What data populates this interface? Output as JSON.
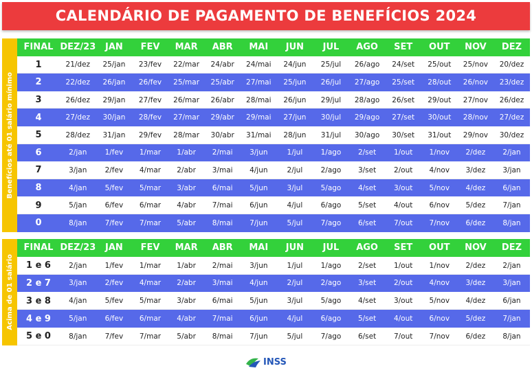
{
  "title": "CALENDÁRIO DE PAGAMENTO DE BENEFÍCIOS 2024",
  "tables": [
    {
      "side_label": "Benefícios até 01 salário mínimo",
      "header": [
        "FINAL",
        "DEZ/23",
        "JAN",
        "FEV",
        "MAR",
        "ABR",
        "MAI",
        "JUN",
        "JUL",
        "AGO",
        "SET",
        "OUT",
        "NOV",
        "DEZ"
      ],
      "rows": [
        [
          "1",
          "21/dez",
          "25/jan",
          "23/fev",
          "22/mar",
          "24/abr",
          "24/mai",
          "24/jun",
          "25/jul",
          "26/ago",
          "24/set",
          "25/out",
          "25/nov",
          "20/dez"
        ],
        [
          "2",
          "22/dez",
          "26/jan",
          "26/fev",
          "25/mar",
          "25/abr",
          "27/mai",
          "25/jun",
          "26/jul",
          "27/ago",
          "25/set",
          "28/out",
          "26/nov",
          "23/dez"
        ],
        [
          "3",
          "26/dez",
          "29/jan",
          "27/fev",
          "26/mar",
          "26/abr",
          "28/mai",
          "26/jun",
          "29/jul",
          "28/ago",
          "26/set",
          "29/out",
          "27/nov",
          "26/dez"
        ],
        [
          "4",
          "27/dez",
          "30/jan",
          "28/fev",
          "27/mar",
          "29/abr",
          "29/mai",
          "27/jun",
          "30/jul",
          "29/ago",
          "27/set",
          "30/out",
          "28/nov",
          "27/dez"
        ],
        [
          "5",
          "28/dez",
          "31/jan",
          "29/fev",
          "28/mar",
          "30/abr",
          "31/mai",
          "28/jun",
          "31/jul",
          "30/ago",
          "30/set",
          "31/out",
          "29/nov",
          "30/dez"
        ],
        [
          "6",
          "2/jan",
          "1/fev",
          "1/mar",
          "1/abr",
          "2/mai",
          "3/jun",
          "1/jul",
          "1/ago",
          "2/set",
          "1/out",
          "1/nov",
          "2/dez",
          "2/jan"
        ],
        [
          "7",
          "3/jan",
          "2/fev",
          "4/mar",
          "2/abr",
          "3/mai",
          "4/jun",
          "2/jul",
          "2/ago",
          "3/set",
          "2/out",
          "4/nov",
          "3/dez",
          "3/jan"
        ],
        [
          "8",
          "4/jan",
          "5/fev",
          "5/mar",
          "3/abr",
          "6/mai",
          "5/jun",
          "3/jul",
          "5/ago",
          "4/set",
          "3/out",
          "5/nov",
          "4/dez",
          "6/jan"
        ],
        [
          "9",
          "5/jan",
          "6/fev",
          "6/mar",
          "4/abr",
          "7/mai",
          "6/jun",
          "4/jul",
          "6/ago",
          "5/set",
          "4/out",
          "6/nov",
          "5/dez",
          "7/jan"
        ],
        [
          "0",
          "8/jan",
          "7/fev",
          "7/mar",
          "5/abr",
          "8/mai",
          "7/jun",
          "5/jul",
          "7/ago",
          "6/set",
          "7/out",
          "7/nov",
          "6/dez",
          "8/jan"
        ]
      ]
    },
    {
      "side_label": "Acima de 01 salário",
      "header": [
        "FINAL",
        "DEZ/23",
        "JAN",
        "FEV",
        "MAR",
        "ABR",
        "MAI",
        "JUN",
        "JUL",
        "AGO",
        "SET",
        "OUT",
        "NOV",
        "DEZ"
      ],
      "rows": [
        [
          "1 e 6",
          "2/jan",
          "1/fev",
          "1/mar",
          "1/abr",
          "2/mai",
          "3/jun",
          "1/jul",
          "1/ago",
          "2/set",
          "1/out",
          "1/nov",
          "2/dez",
          "2/jan"
        ],
        [
          "2 e 7",
          "3/jan",
          "2/fev",
          "4/mar",
          "2/abr",
          "3/mai",
          "4/jun",
          "2/jul",
          "2/ago",
          "3/set",
          "2/out",
          "4/nov",
          "3/dez",
          "3/jan"
        ],
        [
          "3 e 8",
          "4/jan",
          "5/fev",
          "5/mar",
          "3/abr",
          "6/mai",
          "5/jun",
          "3/jul",
          "5/ago",
          "4/set",
          "3/out",
          "5/nov",
          "4/dez",
          "6/jan"
        ],
        [
          "4 e 9",
          "5/jan",
          "6/fev",
          "6/mar",
          "4/abr",
          "7/mai",
          "6/jun",
          "4/jul",
          "6/ago",
          "5/set",
          "4/out",
          "6/nov",
          "5/dez",
          "7/jan"
        ],
        [
          "5 e 0",
          "8/jan",
          "7/fev",
          "7/mar",
          "5/abr",
          "8/mai",
          "7/jun",
          "5/jul",
          "7/ago",
          "6/set",
          "7/out",
          "7/nov",
          "6/dez",
          "8/jan"
        ]
      ]
    }
  ],
  "logo": "INSS"
}
